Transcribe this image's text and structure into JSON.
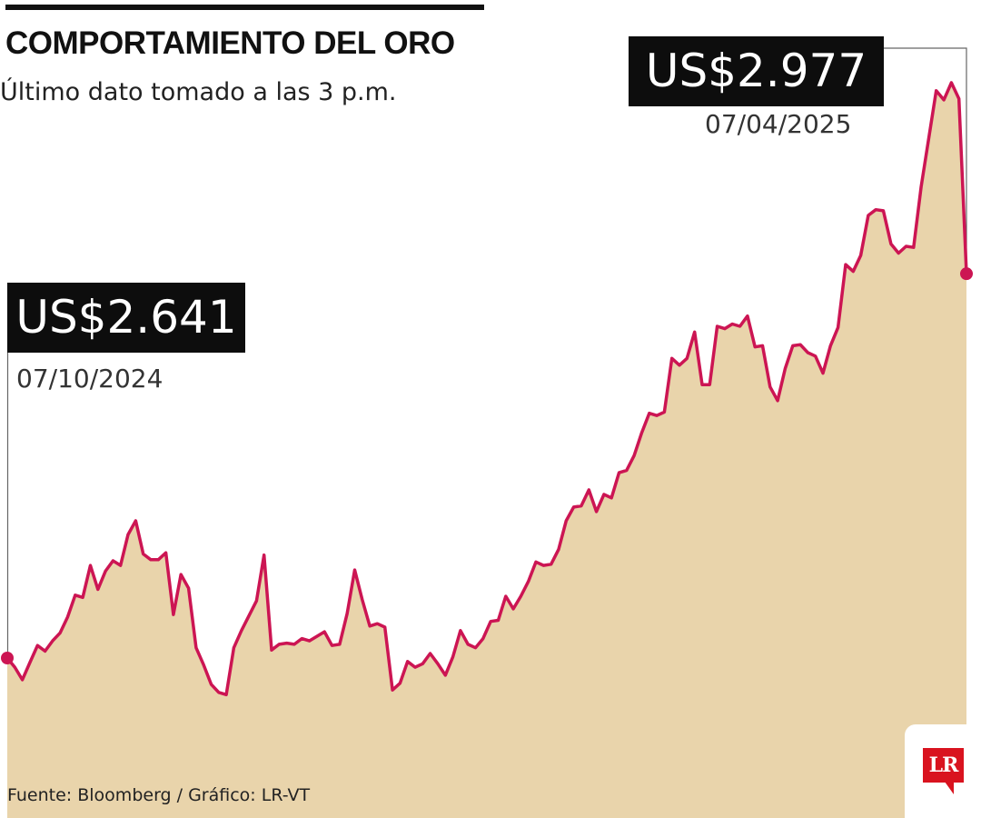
{
  "header": {
    "title": "COMPORTAMIENTO DEL ORO",
    "subtitle": "Último dato tomado a las 3 p.m."
  },
  "footer": {
    "source": "Fuente: Bloomberg / Gráfico: LR-VT",
    "logo": "LR"
  },
  "colors": {
    "line": "#cc1553",
    "area": "#e9d4ab",
    "callout_bg": "#0d0d0d"
  },
  "chart_data": {
    "type": "area",
    "title": "COMPORTAMIENTO DEL ORO",
    "subtitle": "Último dato tomado a las 3 p.m.",
    "unit": "US$",
    "x_start": "07/10/2024",
    "x_end": "07/04/2025",
    "annotations": [
      {
        "label": "US$2.641",
        "date": "07/10/2024",
        "value": 2641
      },
      {
        "label": "US$2.977",
        "date": "07/04/2025",
        "value": 2977
      }
    ],
    "values": [
      2641,
      2633,
      2622,
      2637,
      2652,
      2647,
      2656,
      2663,
      2677,
      2696,
      2694,
      2722,
      2701,
      2717,
      2726,
      2722,
      2749,
      2761,
      2732,
      2727,
      2727,
      2733,
      2679,
      2714,
      2702,
      2650,
      2635,
      2618,
      2611,
      2609,
      2650,
      2665,
      2678,
      2691,
      2731,
      2648,
      2653,
      2654,
      2653,
      2658,
      2656,
      2660,
      2664,
      2652,
      2653,
      2680,
      2718,
      2692,
      2669,
      2671,
      2668,
      2613,
      2619,
      2638,
      2633,
      2636,
      2645,
      2636,
      2626,
      2642,
      2665,
      2653,
      2650,
      2658,
      2673,
      2674,
      2695,
      2684,
      2695,
      2708,
      2725,
      2722,
      2723,
      2736,
      2761,
      2773,
      2774,
      2788,
      2769,
      2784,
      2781,
      2803,
      2805,
      2818,
      2838,
      2855,
      2853,
      2856,
      2903,
      2897,
      2903,
      2926,
      2880,
      2880,
      2931,
      2929,
      2933,
      2931,
      2940,
      2913,
      2914,
      2878,
      2866,
      2894,
      2914,
      2915,
      2908,
      2905,
      2890,
      2914,
      2930,
      2985,
      2979,
      2993,
      3028,
      3033,
      3032,
      3003,
      2995,
      3001,
      3000,
      3053,
      3095,
      3137,
      3129,
      3144,
      3130,
      2977
    ]
  }
}
